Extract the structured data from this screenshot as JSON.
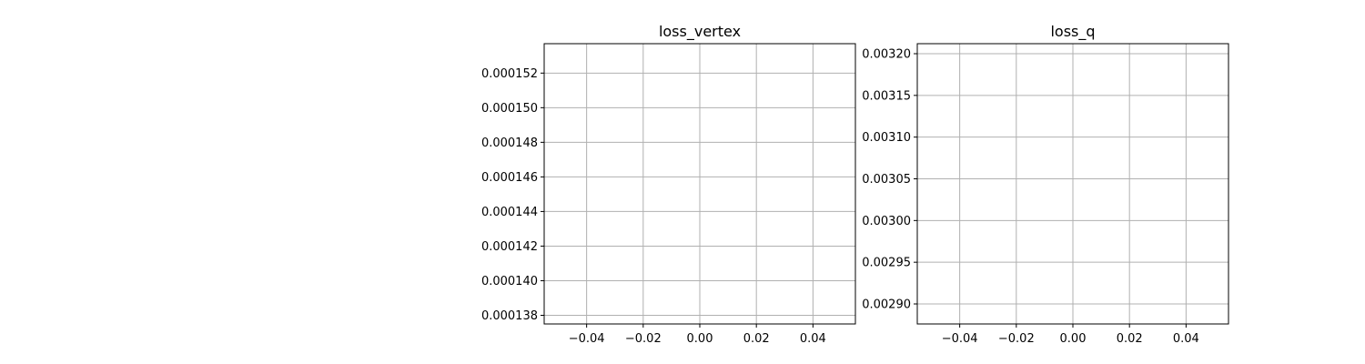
{
  "chart_data": [
    {
      "type": "line",
      "title": "loss_vertex",
      "xlabel": "",
      "ylabel": "",
      "xlim": [
        -0.055,
        0.055
      ],
      "ylim": [
        0.0001375,
        0.0001537
      ],
      "x_ticks": [
        -0.04,
        -0.02,
        0.0,
        0.02,
        0.04
      ],
      "x_tick_labels": [
        "−0.04",
        "−0.02",
        "0.00",
        "0.02",
        "0.04"
      ],
      "y_ticks": [
        0.000138,
        0.00014,
        0.000142,
        0.000144,
        0.000146,
        0.000148,
        0.00015,
        0.000152
      ],
      "y_tick_labels": [
        "0.000138",
        "0.000140",
        "0.000142",
        "0.000144",
        "0.000146",
        "0.000148",
        "0.000150",
        "0.000152"
      ],
      "grid": true,
      "series": []
    },
    {
      "type": "line",
      "title": "loss_q",
      "xlabel": "",
      "ylabel": "",
      "xlim": [
        -0.055,
        0.055
      ],
      "ylim": [
        0.002876,
        0.003212
      ],
      "x_ticks": [
        -0.04,
        -0.02,
        0.0,
        0.02,
        0.04
      ],
      "x_tick_labels": [
        "−0.04",
        "−0.02",
        "0.00",
        "0.02",
        "0.04"
      ],
      "y_ticks": [
        0.0029,
        0.00295,
        0.003,
        0.00305,
        0.0031,
        0.00315,
        0.0032
      ],
      "y_tick_labels": [
        "0.00290",
        "0.00295",
        "0.00300",
        "0.00305",
        "0.00310",
        "0.00315",
        "0.00320"
      ],
      "grid": true,
      "series": []
    }
  ]
}
